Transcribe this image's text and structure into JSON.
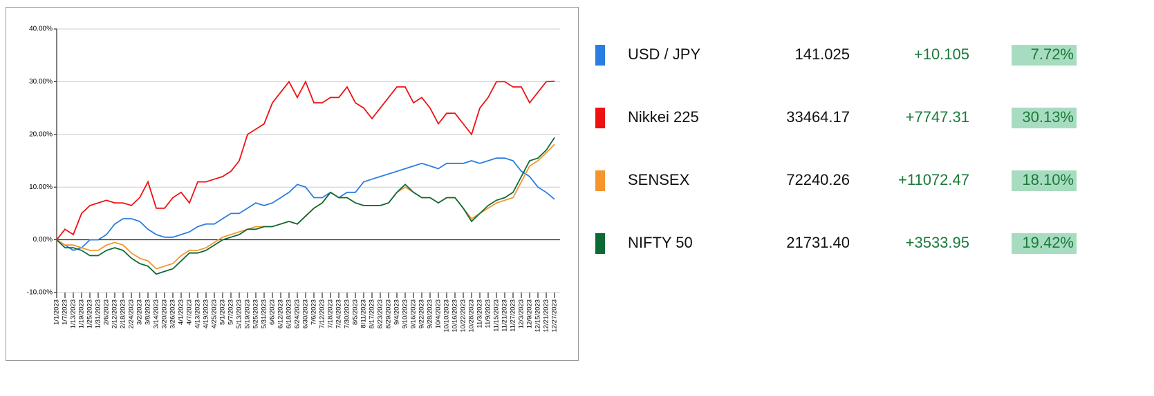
{
  "chart_data": {
    "type": "line",
    "x": [
      "1/1/2023",
      "1/7/2023",
      "1/13/2023",
      "1/19/2023",
      "1/25/2023",
      "1/31/2023",
      "2/6/2023",
      "2/12/2023",
      "2/18/2023",
      "2/24/2023",
      "3/2/2023",
      "3/8/2023",
      "3/14/2023",
      "3/20/2023",
      "3/26/2023",
      "4/1/2023",
      "4/7/2023",
      "4/13/2023",
      "4/19/2023",
      "4/25/2023",
      "5/1/2023",
      "5/7/2023",
      "5/13/2023",
      "5/19/2023",
      "5/25/2023",
      "5/31/2023",
      "6/6/2023",
      "6/12/2023",
      "6/18/2023",
      "6/24/2023",
      "6/30/2023",
      "7/6/2023",
      "7/12/2023",
      "7/18/2023",
      "7/24/2023",
      "7/30/2023",
      "8/5/2023",
      "8/11/2023",
      "8/17/2023",
      "8/23/2023",
      "8/29/2023",
      "9/4/2023",
      "9/10/2023",
      "9/16/2023",
      "9/22/2023",
      "9/28/2023",
      "10/4/2023",
      "10/10/2023",
      "10/16/2023",
      "10/22/2023",
      "10/28/2023",
      "11/3/2023",
      "11/9/2023",
      "11/15/2023",
      "11/21/2023",
      "11/27/2023",
      "12/3/2023",
      "12/9/2023",
      "12/15/2023",
      "12/21/2023",
      "12/27/2023"
    ],
    "series": [
      {
        "name": "USD / JPY",
        "color": "#2a7de1",
        "values": [
          0,
          -1,
          -2,
          -1.5,
          0,
          0,
          1,
          3,
          4,
          4,
          3.5,
          2,
          1,
          0.5,
          0.5,
          1,
          1.5,
          2.5,
          3,
          3,
          4,
          5,
          5,
          6,
          7,
          6.5,
          7,
          8,
          9,
          10.5,
          10,
          8,
          8,
          9,
          8,
          9,
          9,
          11,
          11.5,
          12,
          12.5,
          13,
          13.5,
          14,
          14.5,
          14,
          13.5,
          14.5,
          14.5,
          14.5,
          15,
          14.5,
          15,
          15.5,
          15.5,
          15,
          13,
          12,
          10,
          9,
          7.7
        ]
      },
      {
        "name": "Nikkei 225",
        "color": "#ee1111",
        "values": [
          0,
          2,
          1,
          5,
          6.5,
          7,
          7.5,
          7,
          7,
          6.5,
          8,
          11,
          6,
          6,
          8,
          9,
          7,
          11,
          11,
          11.5,
          12,
          13,
          15,
          20,
          21,
          22,
          26,
          28,
          30,
          27,
          30,
          26,
          26,
          27,
          27,
          29,
          26,
          25,
          23,
          25,
          27,
          29,
          29,
          26,
          27,
          25,
          22,
          24,
          24,
          22,
          20,
          25,
          27,
          30,
          30,
          29,
          29,
          26,
          28,
          30,
          30.1
        ]
      },
      {
        "name": "SENSEX",
        "color": "#f5952e",
        "values": [
          0,
          -1,
          -1,
          -1.5,
          -2,
          -2,
          -1,
          -0.5,
          -1,
          -2.5,
          -3.5,
          -4,
          -5.5,
          -5,
          -4.5,
          -3,
          -2,
          -2,
          -1.5,
          -0.5,
          0.5,
          1,
          1.5,
          2,
          2.5,
          2.5,
          2.5,
          3,
          3.5,
          3,
          4.5,
          6,
          7,
          9,
          8,
          8,
          7,
          6.5,
          6.5,
          6.5,
          7,
          9,
          10,
          9,
          8,
          8,
          7,
          8,
          8,
          6,
          4,
          5,
          6,
          7,
          7.5,
          8,
          11,
          14,
          15,
          16.5,
          18.1
        ]
      },
      {
        "name": "NIFTY 50",
        "color": "#0a6b35",
        "values": [
          0,
          -1.5,
          -1.5,
          -2,
          -3,
          -3,
          -2,
          -1.5,
          -2,
          -3.5,
          -4.5,
          -5,
          -6.5,
          -6,
          -5.5,
          -4,
          -2.5,
          -2.5,
          -2,
          -1,
          0,
          0.5,
          1,
          2,
          2,
          2.5,
          2.5,
          3,
          3.5,
          3,
          4.5,
          6,
          7,
          9,
          8,
          8,
          7,
          6.5,
          6.5,
          6.5,
          7,
          9,
          10.5,
          9,
          8,
          8,
          7,
          8,
          8,
          6,
          3.5,
          5,
          6.5,
          7.5,
          8,
          9,
          12,
          15,
          15.5,
          17,
          19.4
        ]
      }
    ],
    "ylim": [
      -10,
      40
    ],
    "yticks": [
      {
        "value": -10,
        "label": "-10.00%"
      },
      {
        "value": 0,
        "label": "0.00%"
      },
      {
        "value": 10,
        "label": "10.00%"
      },
      {
        "value": 20,
        "label": "20.00%"
      },
      {
        "value": 30,
        "label": "30.00%"
      },
      {
        "value": 40,
        "label": "40.00%"
      }
    ],
    "grid": true
  },
  "table": {
    "rows": [
      [
        "141.025",
        "+10.105",
        "7.72%"
      ],
      [
        "33464.17",
        "+7747.31",
        "30.13%"
      ],
      [
        "72240.26",
        "+11072.47",
        "18.10%"
      ],
      [
        "21731.40",
        "+3533.95",
        "19.42%"
      ]
    ]
  }
}
